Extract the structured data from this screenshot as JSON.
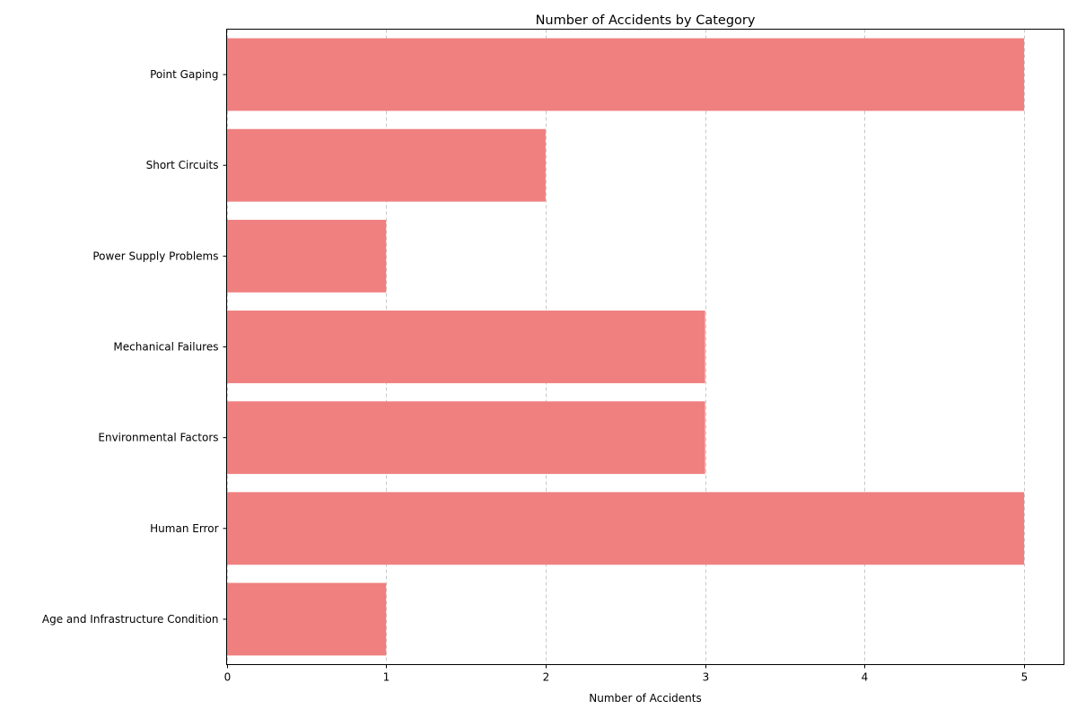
{
  "chart_data": {
    "type": "bar",
    "orientation": "horizontal",
    "title": "Number of Accidents by Category",
    "xlabel": "Number of Accidents",
    "ylabel": "",
    "categories": [
      "Point Gaping",
      "Short Circuits",
      "Power Supply Problems",
      "Mechanical Failures",
      "Environmental Factors",
      "Human Error",
      "Age and Infrastructure Condition"
    ],
    "values": [
      5,
      2,
      1,
      3,
      3,
      5,
      1
    ],
    "xlim": [
      0,
      5.25
    ],
    "xticks": [
      0,
      1,
      2,
      3,
      4,
      5
    ],
    "grid": "x-axis dashed",
    "bar_color": "#f08080",
    "grid_color": "#c8c8c8"
  }
}
